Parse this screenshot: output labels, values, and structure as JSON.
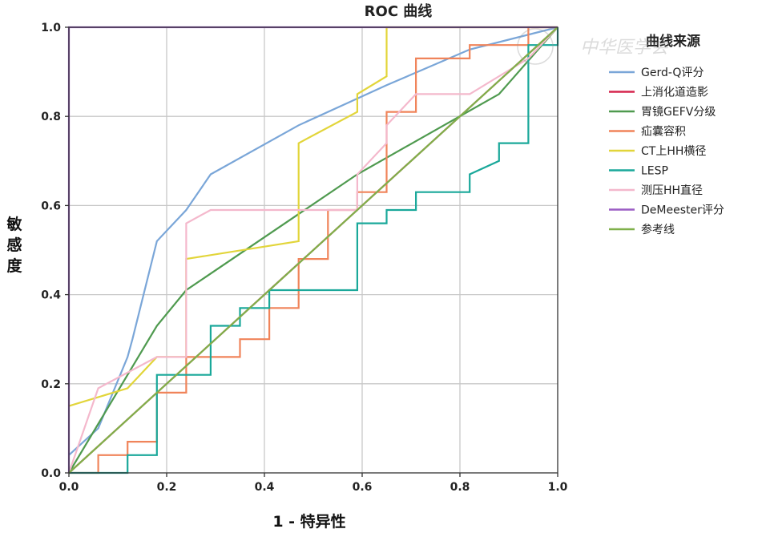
{
  "chart_data": {
    "type": "line",
    "title": "ROC 曲线",
    "xlabel": "1 - 特异性",
    "ylabel": "敏感度",
    "xlim": [
      0,
      1
    ],
    "ylim": [
      0,
      1
    ],
    "x_ticks": [
      "0.0",
      "0.2",
      "0.4",
      "0.6",
      "0.8",
      "1.0"
    ],
    "y_ticks": [
      "0.0",
      "0.2",
      "0.4",
      "0.6",
      "0.8",
      "1.0"
    ],
    "grid": true,
    "legend_title": "曲线来源",
    "legend_position": "right",
    "watermark": "中华医学会",
    "series": [
      {
        "name": "Gerd-Q评分",
        "color": "#7aa6d8",
        "step": false,
        "points": [
          [
            0,
            0.04
          ],
          [
            0.06,
            0.1
          ],
          [
            0.12,
            0.26
          ],
          [
            0.13,
            0.3
          ],
          [
            0.18,
            0.52
          ],
          [
            0.24,
            0.59
          ],
          [
            0.29,
            0.67
          ],
          [
            0.47,
            0.78
          ],
          [
            0.65,
            0.87
          ],
          [
            0.82,
            0.95
          ],
          [
            1,
            1
          ]
        ]
      },
      {
        "name": "上消化道造影",
        "color": "#d6264e",
        "step": false,
        "points": [
          [
            0,
            0
          ],
          [
            0.41,
            0.41
          ],
          [
            1,
            1
          ]
        ]
      },
      {
        "name": "胃镜GEFV分级",
        "color": "#4f9a4f",
        "step": false,
        "points": [
          [
            0,
            0
          ],
          [
            0.18,
            0.33
          ],
          [
            0.24,
            0.41
          ],
          [
            0.59,
            0.67
          ],
          [
            0.88,
            0.85
          ],
          [
            1,
            1
          ]
        ]
      },
      {
        "name": "疝囊容积",
        "color": "#f0845a",
        "step": true,
        "points": [
          [
            0,
            0
          ],
          [
            0.06,
            0
          ],
          [
            0.06,
            0.04
          ],
          [
            0.12,
            0.04
          ],
          [
            0.12,
            0.07
          ],
          [
            0.18,
            0.07
          ],
          [
            0.18,
            0.18
          ],
          [
            0.24,
            0.18
          ],
          [
            0.24,
            0.26
          ],
          [
            0.35,
            0.26
          ],
          [
            0.35,
            0.3
          ],
          [
            0.41,
            0.3
          ],
          [
            0.41,
            0.37
          ],
          [
            0.47,
            0.37
          ],
          [
            0.47,
            0.48
          ],
          [
            0.53,
            0.48
          ],
          [
            0.53,
            0.59
          ],
          [
            0.59,
            0.59
          ],
          [
            0.59,
            0.63
          ],
          [
            0.65,
            0.63
          ],
          [
            0.65,
            0.81
          ],
          [
            0.71,
            0.81
          ],
          [
            0.71,
            0.93
          ],
          [
            0.82,
            0.93
          ],
          [
            0.82,
            0.96
          ],
          [
            0.94,
            0.96
          ],
          [
            0.94,
            1
          ],
          [
            1,
            1
          ]
        ]
      },
      {
        "name": "CT上HH横径",
        "color": "#e2d53a",
        "step": false,
        "points": [
          [
            0,
            0.15
          ],
          [
            0.12,
            0.19
          ],
          [
            0.18,
            0.26
          ],
          [
            0.24,
            0.26
          ],
          [
            0.24,
            0.48
          ],
          [
            0.47,
            0.52
          ],
          [
            0.47,
            0.74
          ],
          [
            0.59,
            0.81
          ],
          [
            0.59,
            0.85
          ],
          [
            0.65,
            0.89
          ],
          [
            0.65,
            1
          ],
          [
            1,
            1
          ]
        ]
      },
      {
        "name": "LESP",
        "color": "#1aa89a",
        "step": true,
        "points": [
          [
            0,
            0
          ],
          [
            0.12,
            0
          ],
          [
            0.12,
            0.04
          ],
          [
            0.18,
            0.04
          ],
          [
            0.18,
            0.22
          ],
          [
            0.29,
            0.22
          ],
          [
            0.29,
            0.33
          ],
          [
            0.35,
            0.33
          ],
          [
            0.35,
            0.37
          ],
          [
            0.41,
            0.37
          ],
          [
            0.41,
            0.41
          ],
          [
            0.59,
            0.41
          ],
          [
            0.59,
            0.56
          ],
          [
            0.65,
            0.56
          ],
          [
            0.65,
            0.59
          ],
          [
            0.71,
            0.59
          ],
          [
            0.71,
            0.63
          ],
          [
            0.82,
            0.63
          ],
          [
            0.82,
            0.67
          ],
          [
            0.88,
            0.7
          ],
          [
            0.88,
            0.74
          ],
          [
            0.94,
            0.74
          ],
          [
            0.94,
            0.96
          ],
          [
            1,
            0.96
          ],
          [
            1,
            1
          ]
        ]
      },
      {
        "name": "测压HH直径",
        "color": "#f4b8cc",
        "step": false,
        "points": [
          [
            0,
            0
          ],
          [
            0.06,
            0.19
          ],
          [
            0.18,
            0.26
          ],
          [
            0.24,
            0.26
          ],
          [
            0.24,
            0.56
          ],
          [
            0.29,
            0.59
          ],
          [
            0.59,
            0.59
          ],
          [
            0.59,
            0.67
          ],
          [
            0.65,
            0.74
          ],
          [
            0.65,
            0.78
          ],
          [
            0.71,
            0.85
          ],
          [
            0.82,
            0.85
          ],
          [
            0.94,
            0.93
          ],
          [
            1,
            1
          ]
        ]
      },
      {
        "name": "DeMeester评分",
        "color": "#9a5cc4",
        "step": false,
        "points": [
          [
            0,
            0
          ],
          [
            0,
            1
          ],
          [
            1,
            1
          ]
        ]
      },
      {
        "name": "参考线",
        "color": "#7fb04a",
        "step": false,
        "points": [
          [
            0,
            0
          ],
          [
            1,
            1
          ]
        ]
      }
    ]
  }
}
